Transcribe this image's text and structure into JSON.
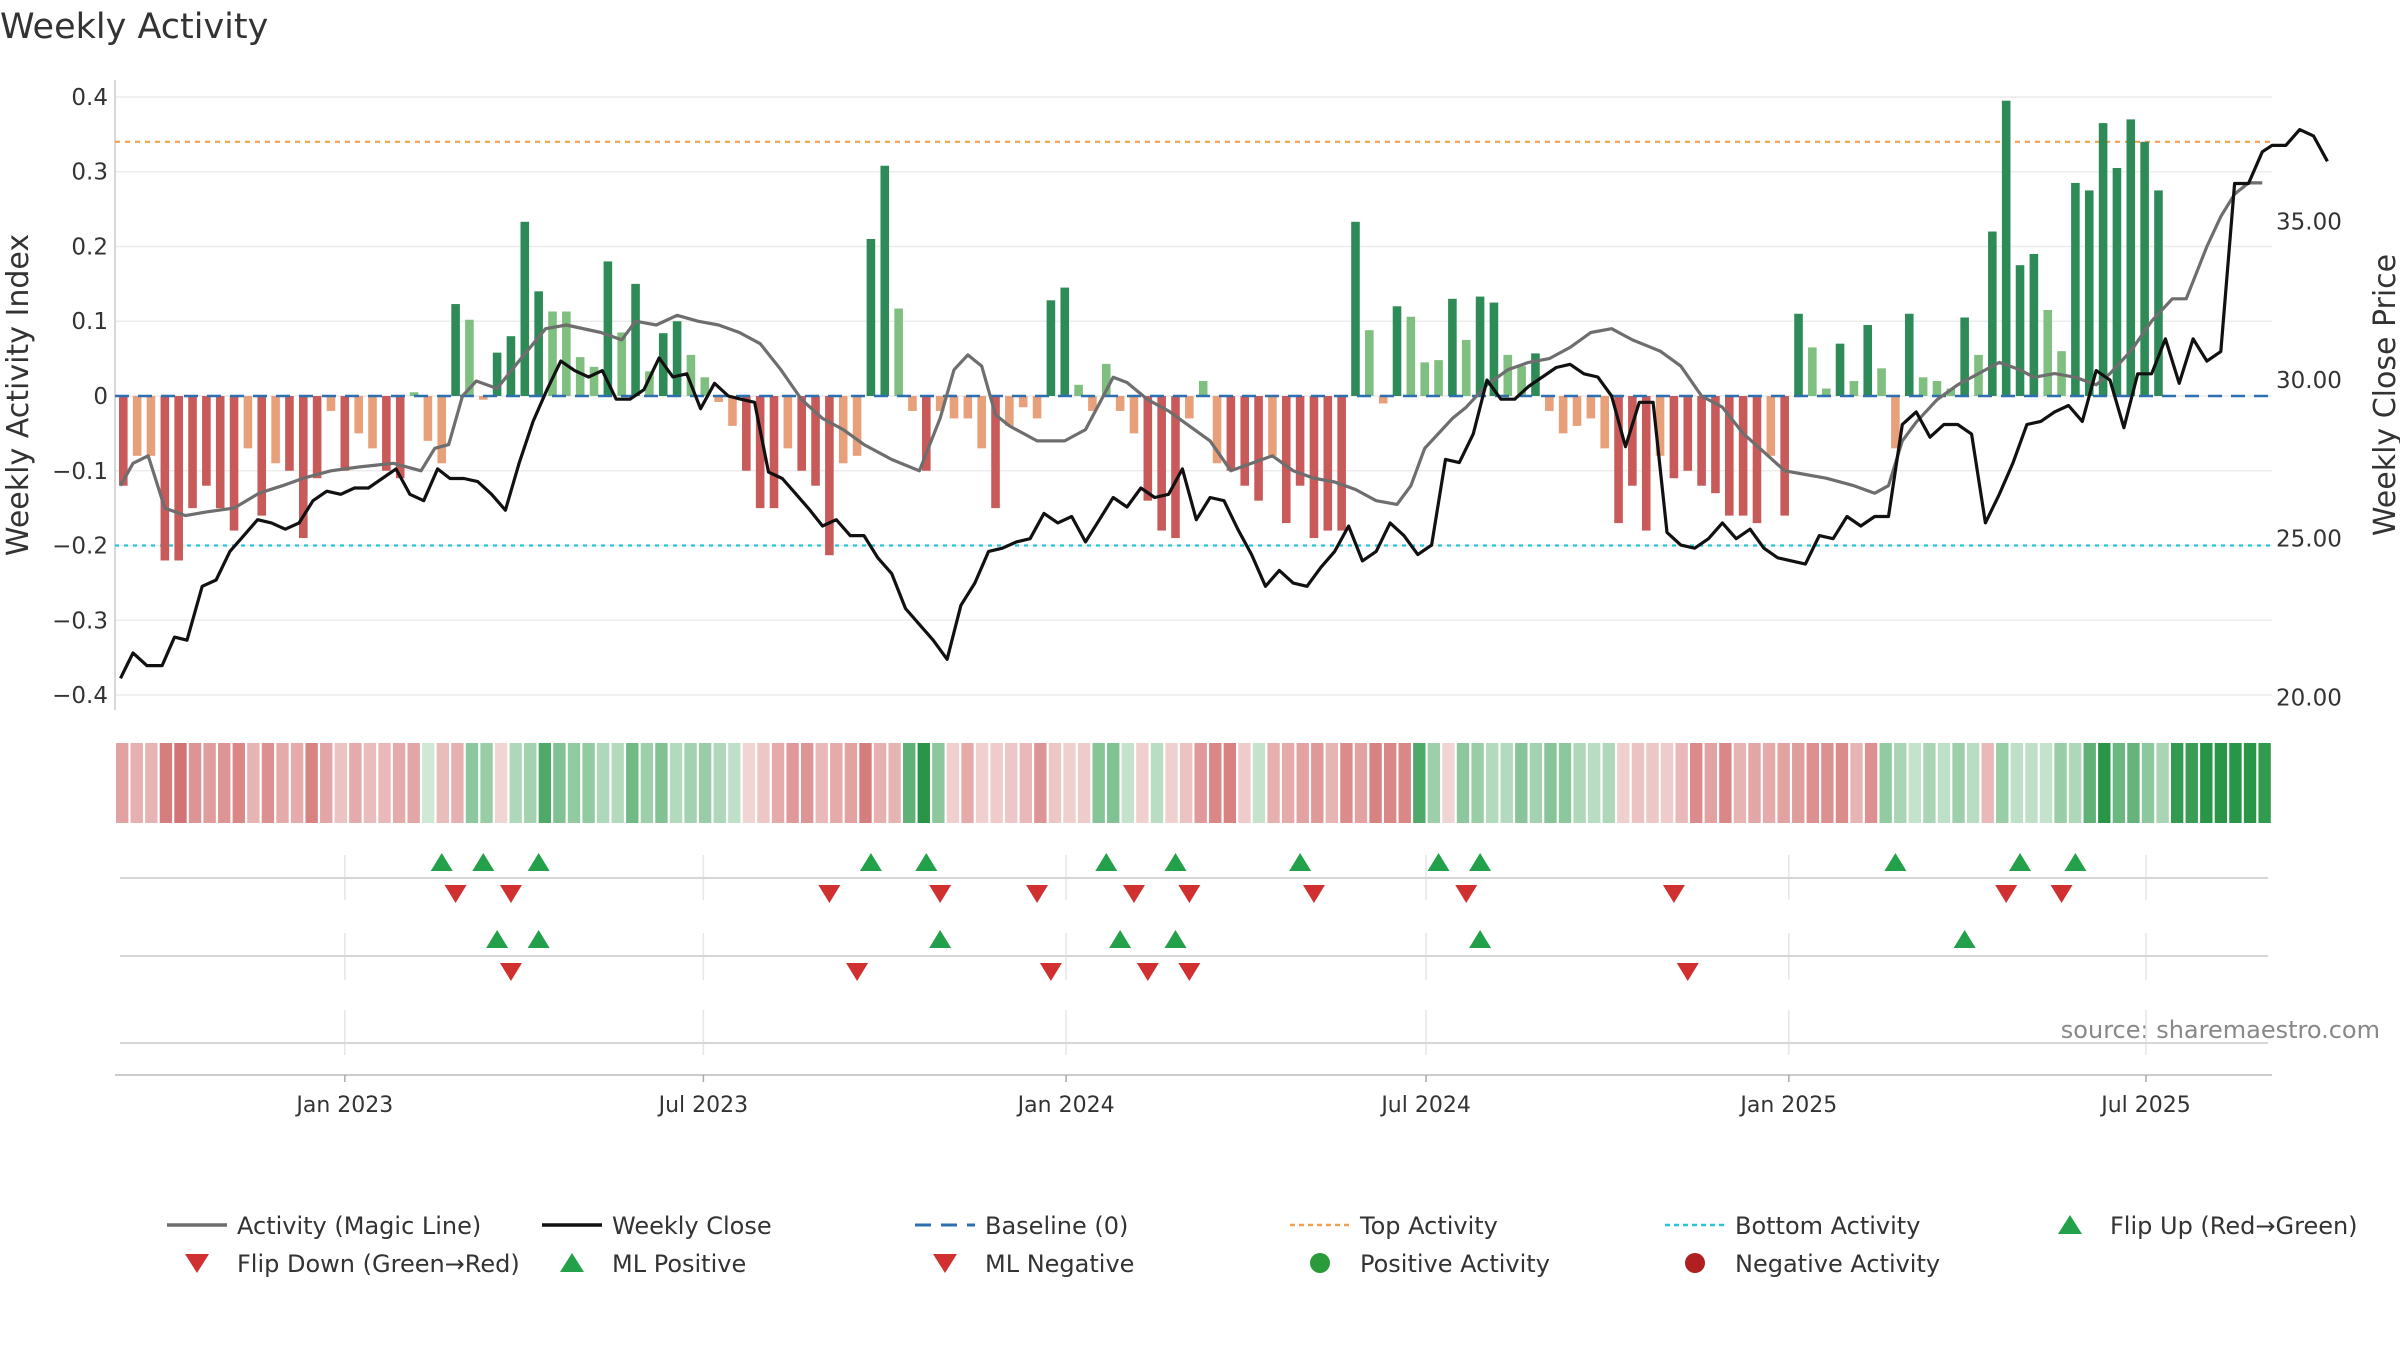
{
  "chart_data": {
    "type": "bar",
    "title": "Weekly Activity",
    "ylabel": "Weekly Activity Index",
    "y2label": "Weekly Close Price",
    "source": "source: sharemaestro.com",
    "ylim": [
      -0.42,
      0.42
    ],
    "yticks": [
      0.4,
      0.3,
      0.2,
      0.1,
      0,
      -0.1,
      -0.2,
      -0.3,
      -0.4
    ],
    "ytick_labels": [
      "0.4",
      "0.3",
      "0.2",
      "0.1",
      "0",
      "−0.1",
      "−0.2",
      "−0.3",
      "−0.4"
    ],
    "y2lim": [
      19.6,
      39.4
    ],
    "y2ticks": [
      35,
      30,
      25,
      20
    ],
    "y2tick_labels": [
      "35.00",
      "30.00",
      "25.00",
      "20.00"
    ],
    "x_start_week": -16.6,
    "x_end_week": 139.2,
    "xticks": [
      {
        "label": "Jan 2023",
        "week": 0
      },
      {
        "label": "Jul 2023",
        "week": 25.9
      },
      {
        "label": "Jan 2024",
        "week": 52.1
      },
      {
        "label": "Jul 2024",
        "week": 78.1
      },
      {
        "label": "Jan 2025",
        "week": 104.3
      },
      {
        "label": "Jul 2025",
        "week": 130.1
      }
    ],
    "top_activity": 0.34,
    "bottom_activity": -0.2,
    "bar_values": [
      -0.12,
      -0.08,
      -0.08,
      -0.22,
      -0.22,
      -0.15,
      -0.12,
      -0.15,
      -0.18,
      -0.07,
      -0.16,
      -0.09,
      -0.1,
      -0.19,
      -0.11,
      -0.02,
      -0.1,
      -0.05,
      -0.07,
      -0.1,
      -0.11,
      0.005,
      -0.06,
      -0.09,
      0.123,
      0.102,
      -0.005,
      0.058,
      0.08,
      0.233,
      0.14,
      0.113,
      0.113,
      0.052,
      0.039,
      0.18,
      0.085,
      0.15,
      0.033,
      0.084,
      0.1,
      0.055,
      0.025,
      -0.008,
      -0.04,
      -0.1,
      -0.15,
      -0.15,
      -0.07,
      -0.1,
      -0.12,
      -0.213,
      -0.09,
      -0.08,
      0.21,
      0.308,
      0.117,
      -0.02,
      -0.1,
      -0.02,
      -0.03,
      -0.03,
      -0.07,
      -0.15,
      -0.04,
      -0.015,
      -0.03,
      0.128,
      0.145,
      0.015,
      -0.02,
      0.043,
      -0.02,
      -0.05,
      -0.14,
      -0.18,
      -0.19,
      -0.03,
      0.02,
      -0.09,
      -0.1,
      -0.12,
      -0.14,
      -0.08,
      -0.17,
      -0.12,
      -0.19,
      -0.18,
      -0.18,
      0.233,
      0.088,
      -0.01,
      0.12,
      0.106,
      0.045,
      0.048,
      0.13,
      0.075,
      0.133,
      0.125,
      0.055,
      0.04,
      0.057,
      -0.02,
      -0.05,
      -0.04,
      -0.03,
      -0.07,
      -0.17,
      -0.12,
      -0.18,
      -0.08,
      -0.11,
      -0.1,
      -0.12,
      -0.13,
      -0.16,
      -0.16,
      -0.17,
      -0.08,
      -0.16,
      0.11,
      0.065,
      0.01,
      0.07,
      0.02,
      0.095,
      0.037,
      -0.07,
      0.11,
      0.025,
      0.02,
      0.01,
      0.105,
      0.055,
      0.22,
      0.395,
      0.175,
      0.19,
      0.115,
      0.06,
      0.285,
      0.275,
      0.365,
      0.305,
      0.37,
      0.34,
      0.275
    ],
    "magic_line": [
      [
        -16.2,
        -0.12
      ],
      [
        -15.3,
        -0.09
      ],
      [
        -14.2,
        -0.08
      ],
      [
        -13,
        -0.15
      ],
      [
        -11.5,
        -0.16
      ],
      [
        -10,
        -0.155
      ],
      [
        -8,
        -0.15
      ],
      [
        -6.2,
        -0.13
      ],
      [
        -4.5,
        -0.12
      ],
      [
        -3,
        -0.11
      ],
      [
        -1,
        -0.1
      ],
      [
        1,
        -0.095
      ],
      [
        3.5,
        -0.09
      ],
      [
        5.5,
        -0.1
      ],
      [
        6.5,
        -0.07
      ],
      [
        7.5,
        -0.065
      ],
      [
        8.5,
        0
      ],
      [
        9.5,
        0.02
      ],
      [
        11,
        0.01
      ],
      [
        12.5,
        0.045
      ],
      [
        14.5,
        0.09
      ],
      [
        16,
        0.095
      ],
      [
        18.5,
        0.085
      ],
      [
        20,
        0.075
      ],
      [
        21,
        0.1
      ],
      [
        22.5,
        0.095
      ],
      [
        24,
        0.108
      ],
      [
        25.5,
        0.1
      ],
      [
        27,
        0.095
      ],
      [
        28.5,
        0.085
      ],
      [
        30,
        0.07
      ],
      [
        31.5,
        0.035
      ],
      [
        33,
        -0.005
      ],
      [
        34.5,
        -0.03
      ],
      [
        36,
        -0.045
      ],
      [
        37.5,
        -0.065
      ],
      [
        39.5,
        -0.085
      ],
      [
        41.5,
        -0.1
      ],
      [
        43,
        -0.03
      ],
      [
        44,
        0.035
      ],
      [
        45,
        0.055
      ],
      [
        46,
        0.04
      ],
      [
        47,
        -0.025
      ],
      [
        48,
        -0.04
      ],
      [
        50,
        -0.06
      ],
      [
        52,
        -0.06
      ],
      [
        53.5,
        -0.045
      ],
      [
        54.5,
        -0.01
      ],
      [
        55.5,
        0.025
      ],
      [
        56.5,
        0.018
      ],
      [
        58,
        -0.005
      ],
      [
        59.5,
        -0.02
      ],
      [
        61,
        -0.04
      ],
      [
        62.5,
        -0.06
      ],
      [
        64,
        -0.1
      ],
      [
        65.5,
        -0.09
      ],
      [
        67,
        -0.08
      ],
      [
        68.5,
        -0.1
      ],
      [
        70,
        -0.11
      ],
      [
        71.5,
        -0.115
      ],
      [
        73,
        -0.125
      ],
      [
        74.5,
        -0.14
      ],
      [
        76,
        -0.145
      ],
      [
        77,
        -0.12
      ],
      [
        78,
        -0.07
      ],
      [
        79,
        -0.05
      ],
      [
        80,
        -0.03
      ],
      [
        81,
        -0.015
      ],
      [
        82.5,
        0.015
      ],
      [
        84,
        0.035
      ],
      [
        85.5,
        0.045
      ],
      [
        87,
        0.05
      ],
      [
        88.5,
        0.065
      ],
      [
        90,
        0.085
      ],
      [
        91.5,
        0.09
      ],
      [
        93,
        0.075
      ],
      [
        95,
        0.06
      ],
      [
        96.5,
        0.04
      ],
      [
        98,
        0
      ],
      [
        99.5,
        -0.015
      ],
      [
        101,
        -0.05
      ],
      [
        102.5,
        -0.075
      ],
      [
        104,
        -0.1
      ],
      [
        105.5,
        -0.105
      ],
      [
        107,
        -0.11
      ],
      [
        109,
        -0.12
      ],
      [
        110.5,
        -0.13
      ],
      [
        111.5,
        -0.12
      ],
      [
        112.5,
        -0.06
      ],
      [
        113.5,
        -0.035
      ],
      [
        115,
        -0.005
      ],
      [
        116.5,
        0.015
      ],
      [
        118,
        0.03
      ],
      [
        119.5,
        0.045
      ],
      [
        121,
        0.035
      ],
      [
        122,
        0.025
      ],
      [
        123.5,
        0.03
      ],
      [
        125,
        0.025
      ],
      [
        126.5,
        0.015
      ],
      [
        127.5,
        0.03
      ],
      [
        129,
        0.06
      ],
      [
        130.5,
        0.1
      ],
      [
        132,
        0.13
      ],
      [
        133,
        0.13
      ],
      [
        134.5,
        0.2
      ],
      [
        135.5,
        0.24
      ],
      [
        136.5,
        0.27
      ],
      [
        137.5,
        0.285
      ],
      [
        138.5,
        0.285
      ]
    ],
    "weekly_close": [
      [
        -16.2,
        20.6
      ],
      [
        -15.3,
        21.4
      ],
      [
        -14.3,
        21.0
      ],
      [
        -13.2,
        21.0
      ],
      [
        -12.3,
        21.9
      ],
      [
        -11.4,
        21.8
      ],
      [
        -10.3,
        23.5
      ],
      [
        -9.3,
        23.7
      ],
      [
        -8.3,
        24.6
      ],
      [
        -7.3,
        25.1
      ],
      [
        -6.3,
        25.6
      ],
      [
        -5.3,
        25.5
      ],
      [
        -4.3,
        25.3
      ],
      [
        -3.3,
        25.5
      ],
      [
        -2.3,
        26.2
      ],
      [
        -1.3,
        26.5
      ],
      [
        -0.3,
        26.4
      ],
      [
        0.7,
        26.6
      ],
      [
        1.7,
        26.6
      ],
      [
        2.7,
        26.9
      ],
      [
        3.7,
        27.2
      ],
      [
        4.7,
        26.4
      ],
      [
        5.7,
        26.2
      ],
      [
        6.7,
        27.2
      ],
      [
        7.6,
        26.9
      ],
      [
        8.6,
        26.9
      ],
      [
        9.6,
        26.8
      ],
      [
        10.6,
        26.4
      ],
      [
        11.6,
        25.9
      ],
      [
        12.6,
        27.4
      ],
      [
        13.6,
        28.7
      ],
      [
        14.6,
        29.7
      ],
      [
        15.6,
        30.6
      ],
      [
        16.6,
        30.3
      ],
      [
        17.6,
        30.1
      ],
      [
        18.6,
        30.3
      ],
      [
        19.6,
        29.4
      ],
      [
        20.6,
        29.4
      ],
      [
        21.6,
        29.7
      ],
      [
        22.7,
        30.7
      ],
      [
        23.7,
        30.1
      ],
      [
        24.7,
        30.2
      ],
      [
        25.7,
        29.1
      ],
      [
        26.7,
        29.9
      ],
      [
        27.7,
        29.5
      ],
      [
        28.6,
        29.4
      ],
      [
        29.6,
        29.3
      ],
      [
        30.6,
        27.1
      ],
      [
        31.6,
        26.9
      ],
      [
        32.6,
        26.4
      ],
      [
        33.6,
        25.9
      ],
      [
        34.5,
        25.4
      ],
      [
        35.5,
        25.6
      ],
      [
        36.5,
        25.1
      ],
      [
        37.5,
        25.1
      ],
      [
        38.5,
        24.4
      ],
      [
        39.5,
        23.9
      ],
      [
        40.5,
        22.8
      ],
      [
        41.5,
        22.3
      ],
      [
        42.5,
        21.8
      ],
      [
        43.5,
        21.2
      ],
      [
        44.5,
        22.9
      ],
      [
        45.5,
        23.6
      ],
      [
        46.5,
        24.6
      ],
      [
        47.5,
        24.7
      ],
      [
        48.5,
        24.9
      ],
      [
        49.5,
        25.0
      ],
      [
        50.5,
        25.8
      ],
      [
        51.5,
        25.5
      ],
      [
        52.5,
        25.7
      ],
      [
        53.5,
        24.9
      ],
      [
        54.5,
        25.6
      ],
      [
        55.5,
        26.3
      ],
      [
        56.5,
        26.0
      ],
      [
        57.5,
        26.6
      ],
      [
        58.5,
        26.3
      ],
      [
        59.5,
        26.4
      ],
      [
        60.5,
        27.2
      ],
      [
        61.5,
        25.6
      ],
      [
        62.5,
        26.3
      ],
      [
        63.5,
        26.2
      ],
      [
        64.5,
        25.3
      ],
      [
        65.5,
        24.5
      ],
      [
        66.5,
        23.5
      ],
      [
        67.5,
        24.0
      ],
      [
        68.5,
        23.6
      ],
      [
        69.5,
        23.5
      ],
      [
        70.5,
        24.1
      ],
      [
        71.5,
        24.6
      ],
      [
        72.5,
        25.4
      ],
      [
        73.5,
        24.3
      ],
      [
        74.5,
        24.6
      ],
      [
        75.5,
        25.5
      ],
      [
        76.5,
        25.1
      ],
      [
        77.5,
        24.5
      ],
      [
        78.5,
        24.8
      ],
      [
        79.5,
        27.5
      ],
      [
        80.5,
        27.4
      ],
      [
        81.5,
        28.3
      ],
      [
        82.5,
        30.0
      ],
      [
        83.5,
        29.4
      ],
      [
        84.5,
        29.4
      ],
      [
        85.5,
        29.8
      ],
      [
        86.5,
        30.1
      ],
      [
        87.5,
        30.4
      ],
      [
        88.5,
        30.5
      ],
      [
        89.5,
        30.2
      ],
      [
        90.5,
        30.1
      ],
      [
        91.5,
        29.5
      ],
      [
        92.5,
        27.9
      ],
      [
        93.5,
        29.3
      ],
      [
        94.5,
        29.3
      ],
      [
        95.5,
        25.2
      ],
      [
        96.5,
        24.8
      ],
      [
        97.5,
        24.7
      ],
      [
        98.5,
        25.0
      ],
      [
        99.5,
        25.5
      ],
      [
        100.5,
        25.0
      ],
      [
        101.5,
        25.3
      ],
      [
        102.5,
        24.7
      ],
      [
        103.5,
        24.4
      ],
      [
        104.5,
        24.3
      ],
      [
        105.5,
        24.2
      ],
      [
        106.5,
        25.1
      ],
      [
        107.5,
        25.0
      ],
      [
        108.5,
        25.7
      ],
      [
        109.5,
        25.4
      ],
      [
        110.5,
        25.7
      ],
      [
        111.5,
        25.7
      ],
      [
        112.5,
        28.6
      ],
      [
        113.5,
        29.0
      ],
      [
        114.5,
        28.2
      ],
      [
        115.5,
        28.6
      ],
      [
        116.5,
        28.6
      ],
      [
        117.5,
        28.3
      ],
      [
        118.5,
        25.5
      ],
      [
        119.5,
        26.4
      ],
      [
        120.5,
        27.4
      ],
      [
        121.5,
        28.6
      ],
      [
        122.5,
        28.7
      ],
      [
        123.5,
        29.0
      ],
      [
        124.5,
        29.2
      ],
      [
        125.5,
        28.7
      ],
      [
        126.5,
        30.3
      ],
      [
        127.5,
        30.0
      ],
      [
        128.5,
        28.5
      ],
      [
        129.5,
        30.2
      ],
      [
        130.5,
        30.2
      ],
      [
        131.5,
        31.3
      ],
      [
        132.5,
        29.9
      ],
      [
        133.5,
        31.3
      ],
      [
        134.5,
        30.6
      ],
      [
        135.5,
        30.9
      ],
      [
        136.5,
        36.2
      ],
      [
        137.5,
        36.2
      ],
      [
        138.5,
        37.2
      ],
      [
        139.2,
        37.4
      ]
    ],
    "weekly_close_tail": [
      [
        139.2,
        37.4
      ],
      [
        140.2,
        37.4
      ],
      [
        141.2,
        37.9
      ],
      [
        142.2,
        37.7
      ],
      [
        143.2,
        36.9
      ]
    ],
    "strip_values": [
      -0.12,
      -0.09,
      -0.08,
      -0.2,
      -0.22,
      -0.15,
      -0.13,
      -0.15,
      -0.18,
      -0.08,
      -0.16,
      -0.1,
      -0.1,
      -0.19,
      -0.11,
      -0.05,
      -0.1,
      -0.06,
      -0.07,
      -0.1,
      -0.11,
      0.0,
      -0.06,
      -0.09,
      0.12,
      0.1,
      -0.01,
      0.06,
      0.08,
      0.23,
      0.14,
      0.11,
      0.11,
      0.06,
      0.05,
      0.17,
      0.09,
      0.14,
      0.05,
      0.08,
      0.1,
      0.06,
      0.03,
      -0.01,
      -0.04,
      -0.1,
      -0.14,
      -0.15,
      -0.07,
      -0.1,
      -0.12,
      -0.2,
      -0.09,
      -0.08,
      0.2,
      0.3,
      0.12,
      -0.02,
      -0.1,
      -0.02,
      -0.03,
      -0.04,
      -0.07,
      -0.15,
      -0.04,
      -0.02,
      -0.03,
      0.13,
      0.14,
      0.02,
      -0.02,
      0.04,
      -0.02,
      -0.05,
      -0.14,
      -0.18,
      -0.19,
      -0.03,
      0.02,
      -0.09,
      -0.1,
      -0.12,
      -0.14,
      -0.08,
      -0.17,
      -0.12,
      -0.19,
      -0.18,
      -0.18,
      0.23,
      0.09,
      -0.01,
      0.12,
      0.1,
      0.05,
      0.05,
      0.13,
      0.08,
      0.13,
      0.12,
      0.06,
      0.04,
      0.06,
      -0.02,
      -0.05,
      -0.04,
      -0.03,
      -0.07,
      -0.17,
      -0.12,
      -0.18,
      -0.08,
      -0.11,
      -0.1,
      -0.12,
      -0.13,
      -0.16,
      -0.16,
      -0.17,
      -0.08,
      -0.16,
      0.11,
      0.07,
      0.02,
      0.07,
      0.03,
      0.09,
      0.04,
      -0.07,
      0.1,
      0.03,
      0.03,
      0.02,
      0.1,
      0.06,
      0.2,
      0.35,
      0.18,
      0.19,
      0.12,
      0.07,
      0.28,
      0.27,
      0.33,
      0.3,
      0.34,
      0.34,
      0.28
    ],
    "signal_rows": {
      "row1_up": [
        7.0,
        10.0,
        14.0,
        38.0,
        42.0,
        55.0,
        60.0,
        69.0,
        79.0,
        82.0,
        112.0,
        121.0,
        125.0
      ],
      "row1_down": [
        8.0,
        12.0,
        35.0,
        43.0,
        50.0,
        57.0,
        61.0,
        70.0,
        81.0,
        96.0,
        120.0,
        124.0
      ],
      "row2_up": [
        11.0,
        14.0,
        43.0,
        56.0,
        60.0,
        82.0,
        117.0
      ],
      "row2_down": [
        12.0,
        37.0,
        51.0,
        58.0,
        61.0,
        97.0
      ]
    },
    "legend": [
      {
        "label": "Activity (Magic Line)",
        "marker": "line-solid",
        "color": "#6e6e6e"
      },
      {
        "label": "Weekly Close",
        "marker": "line-solid",
        "color": "#111111"
      },
      {
        "label": "Baseline (0)",
        "marker": "line-dashed",
        "color": "#2e6fb0"
      },
      {
        "label": "Top Activity",
        "marker": "line-dotted",
        "color": "#f0a050"
      },
      {
        "label": "Bottom Activity",
        "marker": "line-dotted",
        "color": "#29c4d6"
      },
      {
        "label": "Flip Up (Red→Green)",
        "marker": "triangle-up",
        "color": "#22a04a"
      },
      {
        "label": "Flip Down (Green→Red)",
        "marker": "triangle-down",
        "color": "#d03030"
      },
      {
        "label": "ML Positive",
        "marker": "triangle-up",
        "color": "#22a04a"
      },
      {
        "label": "ML Negative",
        "marker": "triangle-down",
        "color": "#d03030"
      },
      {
        "label": "Positive Activity",
        "marker": "circle",
        "color": "#2a9a3a"
      },
      {
        "label": "Negative Activity",
        "marker": "circle",
        "color": "#b02020"
      }
    ],
    "colors": {
      "bar_pos_strong": "#2e8b57",
      "bar_pos_weak": "#7fbf7f",
      "bar_neg_strong": "#c85a5a",
      "bar_neg_weak": "#e8a07a",
      "magic_line": "#6e6e6e",
      "weekly_close": "#111111",
      "baseline": "#2e6fb0",
      "top_activity": "#f0a050",
      "bottom_activity": "#29c4d6",
      "up_marker": "#22a04a",
      "down_marker": "#d03030"
    }
  }
}
